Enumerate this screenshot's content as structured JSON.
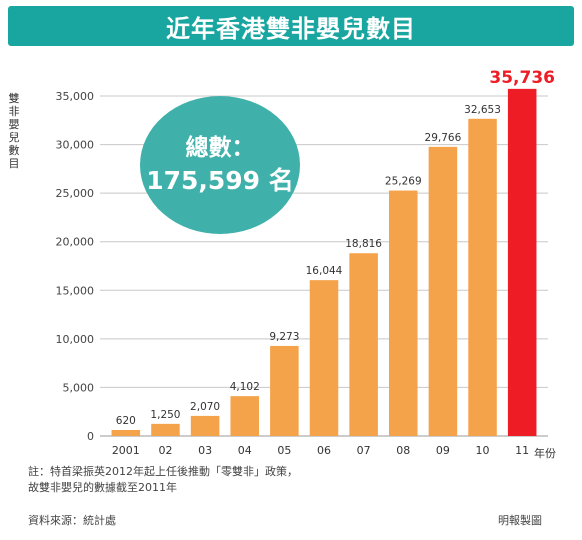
{
  "title": "近年香港雙非嬰兒數目",
  "bubble": {
    "label": "總數：",
    "value": "175,599 名"
  },
  "note": {
    "line1": "註：特首梁振英2012年起上任後推動「零雙非」政策，",
    "line2": "故雙非嬰兒的數據截至2011年"
  },
  "source": "資料來源：統計處",
  "credit": "明報製圖",
  "colors": {
    "bar": "#f5a34b",
    "highlight_bar": "#ee1c25",
    "title_bg": "#1aa6a0",
    "bubble": "#3fb1aa",
    "grid": "#c8c8c8"
  },
  "chart_data": {
    "type": "bar",
    "title": "近年香港雙非嬰兒數目",
    "ylabel": "雙非嬰兒數目",
    "xlabel": "年份",
    "categories": [
      "2001",
      "02",
      "03",
      "04",
      "05",
      "06",
      "07",
      "08",
      "09",
      "10",
      "11"
    ],
    "values": [
      620,
      1250,
      2070,
      4102,
      9273,
      16044,
      18816,
      25269,
      29766,
      32653,
      35736
    ],
    "value_labels": [
      "620",
      "1,250",
      "2,070",
      "4,102",
      "9,273",
      "16,044",
      "18,816",
      "25,269",
      "29,766",
      "32,653",
      "35,736"
    ],
    "highlight_index": 10,
    "ylim": [
      0,
      35000
    ],
    "yticks": [
      0,
      5000,
      10000,
      15000,
      20000,
      25000,
      30000,
      35000
    ],
    "ytick_labels": [
      "0",
      "5,000",
      "10,000",
      "15,000",
      "20,000",
      "25,000",
      "30,000",
      "35,000"
    ],
    "grid": true
  }
}
